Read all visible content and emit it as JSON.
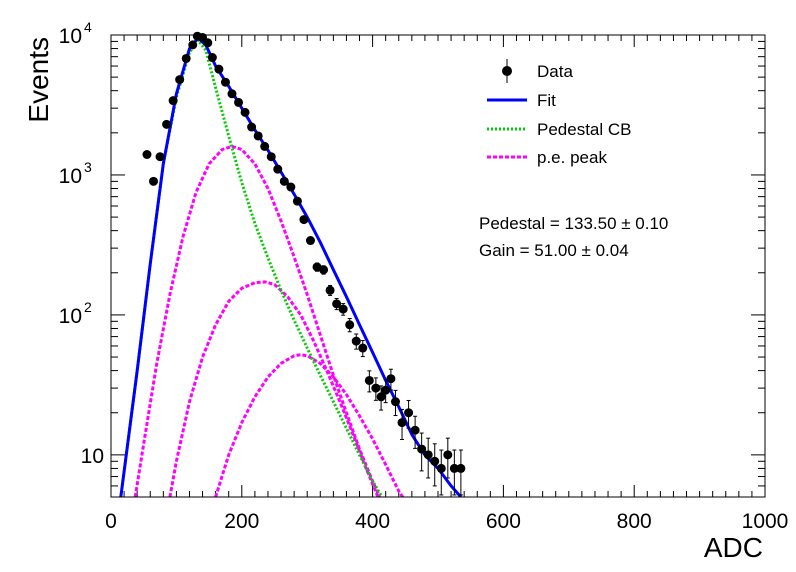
{
  "chart_data": {
    "type": "scatter",
    "title": "",
    "xlabel": "ADC",
    "ylabel": "Events",
    "xlim": [
      0,
      1000
    ],
    "ylim": [
      5,
      10000
    ],
    "yscale": "log",
    "x_ticks": [
      "0",
      "200",
      "400",
      "600",
      "800",
      "1000"
    ],
    "y_ticks": [
      {
        "base": "10",
        "exp": "",
        "value": 10
      },
      {
        "base": "10",
        "exp": "2",
        "value": 100
      },
      {
        "base": "10",
        "exp": "3",
        "value": 1000
      },
      {
        "base": "10",
        "exp": "4",
        "value": 10000
      }
    ],
    "legend_position": "top-right",
    "legend": [
      {
        "label": "Data",
        "style": "marker-errorbar",
        "color": "#000000"
      },
      {
        "label": "Fit",
        "style": "solid",
        "color": "#0000ff"
      },
      {
        "label": "Pedestal CB",
        "style": "dotted",
        "color": "#00cc00"
      },
      {
        "label": "p.e. peak",
        "style": "dashed",
        "color": "#ff00ff"
      }
    ],
    "annotations": [
      "Pedestal = 133.50 ± 0.10",
      "Gain = 51.00 ± 0.04"
    ],
    "data_points": [
      {
        "x": 55,
        "y": 1400
      },
      {
        "x": 65,
        "y": 900
      },
      {
        "x": 75,
        "y": 1350
      },
      {
        "x": 85,
        "y": 2300
      },
      {
        "x": 95,
        "y": 3400
      },
      {
        "x": 105,
        "y": 4800
      },
      {
        "x": 115,
        "y": 6800
      },
      {
        "x": 125,
        "y": 8500
      },
      {
        "x": 132,
        "y": 9800
      },
      {
        "x": 140,
        "y": 9600
      },
      {
        "x": 148,
        "y": 8800
      },
      {
        "x": 155,
        "y": 6900
      },
      {
        "x": 165,
        "y": 5700
      },
      {
        "x": 175,
        "y": 4600
      },
      {
        "x": 185,
        "y": 3800
      },
      {
        "x": 195,
        "y": 3300
      },
      {
        "x": 205,
        "y": 2800
      },
      {
        "x": 215,
        "y": 2200
      },
      {
        "x": 225,
        "y": 1900
      },
      {
        "x": 235,
        "y": 1600
      },
      {
        "x": 245,
        "y": 1350
      },
      {
        "x": 255,
        "y": 1100
      },
      {
        "x": 265,
        "y": 900
      },
      {
        "x": 275,
        "y": 820
      },
      {
        "x": 285,
        "y": 650
      },
      {
        "x": 295,
        "y": 480
      },
      {
        "x": 305,
        "y": 340
      },
      {
        "x": 315,
        "y": 220
      },
      {
        "x": 325,
        "y": 210
      },
      {
        "x": 335,
        "y": 150
      },
      {
        "x": 345,
        "y": 120
      },
      {
        "x": 355,
        "y": 110
      },
      {
        "x": 365,
        "y": 85
      },
      {
        "x": 375,
        "y": 65
      },
      {
        "x": 385,
        "y": 58
      },
      {
        "x": 395,
        "y": 34
      },
      {
        "x": 405,
        "y": 30
      },
      {
        "x": 413,
        "y": 26
      },
      {
        "x": 420,
        "y": 29
      },
      {
        "x": 428,
        "y": 35
      },
      {
        "x": 435,
        "y": 24
      },
      {
        "x": 445,
        "y": 17
      },
      {
        "x": 455,
        "y": 20
      },
      {
        "x": 465,
        "y": 15
      },
      {
        "x": 475,
        "y": 11
      },
      {
        "x": 485,
        "y": 10
      },
      {
        "x": 495,
        "y": 9
      },
      {
        "x": 505,
        "y": 8
      },
      {
        "x": 515,
        "y": 10
      },
      {
        "x": 525,
        "y": 8
      },
      {
        "x": 535,
        "y": 8
      }
    ],
    "curves": {
      "fit": {
        "x": [
          15,
          40,
          60,
          80,
          100,
          120,
          133,
          145,
          160,
          180,
          200,
          220,
          240,
          260,
          280,
          300,
          320,
          340,
          360,
          380,
          400,
          420,
          440,
          460,
          480,
          500,
          520,
          535
        ],
        "y": [
          5,
          40,
          230,
          1200,
          3800,
          8000,
          9500,
          8500,
          6000,
          4300,
          3000,
          2100,
          1500,
          1050,
          730,
          500,
          330,
          210,
          135,
          85,
          54,
          34,
          22,
          14,
          10,
          8,
          6,
          5
        ]
      },
      "pedestal_cb": {
        "x": [
          15,
          40,
          60,
          80,
          100,
          120,
          133,
          145,
          160,
          180,
          200,
          220,
          240,
          260,
          280,
          300,
          320,
          340,
          360,
          380,
          400,
          420
        ],
        "y": [
          5,
          40,
          230,
          1200,
          3600,
          7500,
          9200,
          7800,
          4200,
          1900,
          880,
          450,
          255,
          150,
          92,
          58,
          37,
          24,
          15.5,
          10,
          6.5,
          4.5
        ]
      },
      "pe_peaks": [
        {
          "x": [
            37,
            50,
            70,
            90,
            110,
            130,
            150,
            170,
            185,
            200,
            220,
            240,
            260,
            280,
            300,
            320,
            340,
            360,
            380,
            400,
            420,
            440,
            460,
            470
          ],
          "y": [
            5,
            12,
            45,
            140,
            360,
            750,
            1200,
            1520,
            1600,
            1520,
            1200,
            800,
            470,
            260,
            140,
            72,
            37,
            20,
            11,
            6.5,
            4,
            2.5,
            1.6,
            1.3
          ]
        },
        {
          "x": [
            90,
            100,
            120,
            140,
            160,
            180,
            200,
            220,
            236,
            250,
            270,
            290,
            310,
            330,
            350,
            370,
            390,
            410,
            425
          ],
          "y": [
            5,
            9,
            24,
            50,
            85,
            125,
            155,
            170,
            172,
            165,
            135,
            100,
            65,
            40,
            24,
            14,
            8,
            4.8,
            3.5
          ]
        },
        {
          "x": [
            160,
            180,
            200,
            220,
            240,
            260,
            280,
            290,
            300,
            320,
            340,
            360,
            380,
            400,
            420,
            440,
            460
          ],
          "y": [
            5,
            10,
            17,
            26,
            36,
            45,
            51,
            52,
            51,
            45,
            36,
            27,
            19,
            13,
            8.5,
            5.5,
            4
          ]
        }
      ]
    }
  }
}
